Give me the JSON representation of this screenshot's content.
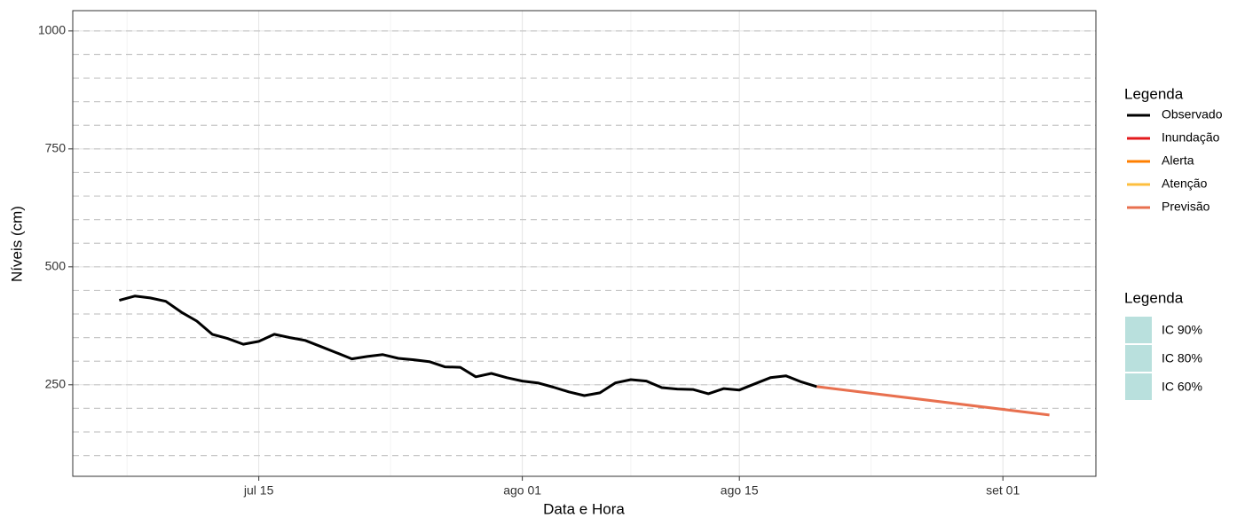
{
  "chart_data": {
    "type": "line",
    "x_label": "Data e Hora",
    "y_label": "Níveis (cm)",
    "xlim": [
      "07-03",
      "09-07"
    ],
    "xticks": [
      {
        "value": "07-15",
        "label": "jul 15"
      },
      {
        "value": "08-01",
        "label": "ago 01"
      },
      {
        "value": "08-15",
        "label": "ago 15"
      },
      {
        "value": "09-01",
        "label": "set 01"
      }
    ],
    "ylim": [
      56,
      1043
    ],
    "yticks": [
      250,
      500,
      750,
      1000
    ],
    "grid": true,
    "hlines": [
      100,
      150,
      200,
      250,
      300,
      350,
      400,
      450,
      500,
      550,
      600,
      650,
      700,
      750,
      800,
      850,
      900,
      950,
      1000
    ],
    "hline_color": "#c8c8c8",
    "legend_title": "Legenda",
    "series": [
      {
        "name": "Observado",
        "color": "#000000",
        "x": [
          "07-06",
          "07-07",
          "07-08",
          "07-09",
          "07-10",
          "07-11",
          "07-12",
          "07-13",
          "07-14",
          "07-15",
          "07-16",
          "07-17",
          "07-18",
          "07-19",
          "07-20",
          "07-21",
          "07-22",
          "07-23",
          "07-24",
          "07-25",
          "07-26",
          "07-27",
          "07-28",
          "07-29",
          "07-30",
          "07-31",
          "08-01",
          "08-02",
          "08-03",
          "08-04",
          "08-05",
          "08-06",
          "08-07",
          "08-08",
          "08-09",
          "08-10",
          "08-11",
          "08-12",
          "08-13",
          "08-14",
          "08-15",
          "08-16",
          "08-17",
          "08-18",
          "08-19",
          "08-20"
        ],
        "values": [
          429,
          438,
          434,
          427,
          404,
          385,
          357,
          348,
          336,
          342,
          357,
          350,
          344,
          331,
          318,
          305,
          310,
          314,
          306,
          303,
          299,
          288,
          287,
          267,
          274,
          265,
          258,
          254,
          245,
          235,
          227,
          233,
          254,
          261,
          258,
          244,
          241,
          240,
          231,
          242,
          239,
          252,
          265,
          269,
          256,
          246
        ]
      },
      {
        "name": "Inundação",
        "color": "#e31a1c",
        "x": [],
        "values": []
      },
      {
        "name": "Alerta",
        "color": "#ff7f00",
        "x": [],
        "values": []
      },
      {
        "name": "Atenção",
        "color": "#fdbf3f",
        "x": [],
        "values": []
      },
      {
        "name": "Previsão",
        "color": "#e8704f",
        "x": [
          "08-20",
          "09-04"
        ],
        "values": [
          246,
          186
        ]
      }
    ],
    "fill_legend": {
      "title": "Legenda",
      "items": [
        {
          "name": "IC 90%",
          "color": "#b9e0dd"
        },
        {
          "name": "IC 80%",
          "color": "#b9e0dd"
        },
        {
          "name": "IC 60%",
          "color": "#b9e0dd"
        }
      ]
    }
  }
}
